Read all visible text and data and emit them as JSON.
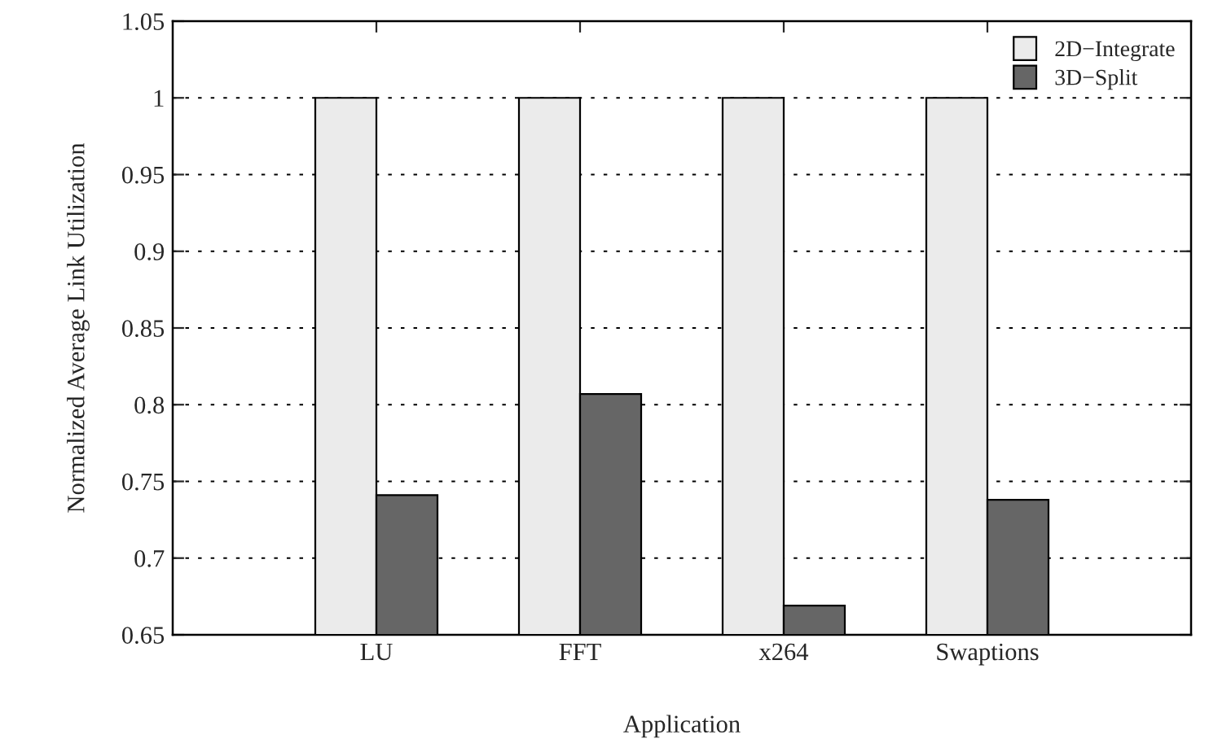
{
  "chart_data": {
    "type": "bar",
    "xlabel": "Application",
    "ylabel": "Normalized Average Link Utilization",
    "categories": [
      "LU",
      "FFT",
      "x264",
      "Swaptions"
    ],
    "series": [
      {
        "name": "2D−Integrate",
        "color": "#ebebeb",
        "values": [
          1,
          1,
          1,
          1
        ]
      },
      {
        "name": "3D−Split",
        "color": "#666666",
        "values": [
          0.741,
          0.807,
          0.669,
          0.738
        ]
      }
    ],
    "ylim": [
      0.65,
      1.05
    ],
    "yticks": [
      0.65,
      0.7,
      0.75,
      0.8,
      0.85,
      0.9,
      0.95,
      1,
      1.05
    ],
    "grid": "y",
    "legend": "top right"
  }
}
